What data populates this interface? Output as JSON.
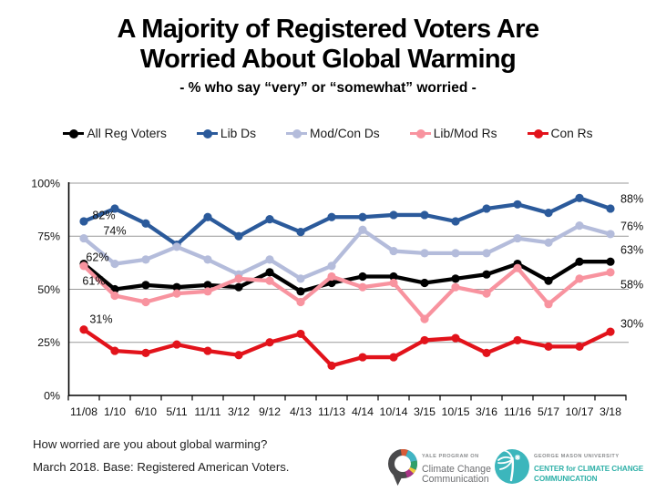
{
  "title": {
    "line1": "A Majority of Registered Voters Are",
    "line2": "Worried About Global Warming",
    "subtitle": "- % who say “very” or “somewhat” worried -"
  },
  "chart_data": {
    "type": "line",
    "categories": [
      "11/08",
      "1/10",
      "6/10",
      "5/11",
      "11/11",
      "3/12",
      "9/12",
      "4/13",
      "11/13",
      "4/14",
      "10/14",
      "3/15",
      "10/15",
      "3/16",
      "11/16",
      "5/17",
      "10/17",
      "3/18"
    ],
    "series": [
      {
        "name": "All Reg Voters",
        "color": "#000000",
        "values": [
          62,
          50,
          52,
          51,
          52,
          51,
          58,
          49,
          53,
          56,
          56,
          53,
          55,
          57,
          62,
          54,
          63,
          63
        ]
      },
      {
        "name": "Lib Ds",
        "color": "#2B5A9B",
        "values": [
          82,
          88,
          81,
          71,
          84,
          75,
          83,
          77,
          84,
          84,
          85,
          85,
          82,
          88,
          90,
          86,
          93,
          88
        ]
      },
      {
        "name": "Mod/Con Ds",
        "color": "#B4BCDB",
        "values": [
          74,
          62,
          64,
          70,
          64,
          57,
          64,
          55,
          61,
          78,
          68,
          67,
          67,
          67,
          74,
          72,
          80,
          76
        ]
      },
      {
        "name": "Lib/Mod Rs",
        "color": "#F8939F",
        "values": [
          61,
          47,
          44,
          48,
          49,
          55,
          54,
          44,
          56,
          51,
          53,
          36,
          51,
          48,
          60,
          43,
          55,
          58
        ]
      },
      {
        "name": "Con Rs",
        "color": "#E2131B",
        "values": [
          31,
          21,
          20,
          24,
          21,
          19,
          25,
          29,
          14,
          18,
          18,
          26,
          27,
          20,
          26,
          23,
          23,
          30
        ]
      }
    ],
    "ylim": [
      0,
      100
    ],
    "yticks": [
      {
        "value": 100,
        "label": "100%"
      },
      {
        "value": 75,
        "label": "75%"
      },
      {
        "value": 50,
        "label": "50%"
      },
      {
        "value": 25,
        "label": "25%"
      },
      {
        "value": 0,
        "label": "0%"
      }
    ],
    "grid": "horizontal",
    "legend_position": "top",
    "xlabel": "",
    "ylabel": "",
    "first_point_labels": [
      {
        "series": "Lib Ds",
        "text": "82%"
      },
      {
        "series": "Mod/Con Ds",
        "text": "74%"
      },
      {
        "series": "All Reg Voters",
        "text": "62%"
      },
      {
        "series": "Lib/Mod Rs",
        "text": "61%"
      },
      {
        "series": "Con Rs",
        "text": "31%"
      }
    ],
    "last_point_labels": [
      {
        "series": "Lib Ds",
        "text": "88%"
      },
      {
        "series": "Mod/Con Ds",
        "text": "76%"
      },
      {
        "series": "All Reg Voters",
        "text": "63%"
      },
      {
        "series": "Lib/Mod Rs",
        "text": "58%"
      },
      {
        "series": "Con Rs",
        "text": "30%"
      }
    ]
  },
  "footer": {
    "question": "How worried are you about global warming?",
    "base": "March 2018. Base: Registered American Voters."
  },
  "logos": {
    "yale": {
      "small": "YALE PROGRAM ON",
      "line1": "Climate Change",
      "line2": "Communication",
      "ring_dark": "#4A4A4C",
      "segment_colors": [
        "#D85C38",
        "#41B5C4",
        "#2FA06B",
        "#EFC83D",
        "#A83487"
      ]
    },
    "gmu": {
      "small": "GEORGE MASON UNIVERSITY",
      "line1": "CENTER for CLIMATE CHANGE",
      "line2": "COMMUNICATION",
      "teal": "#3CB6BC",
      "text_teal": "#2FB0A8"
    }
  }
}
